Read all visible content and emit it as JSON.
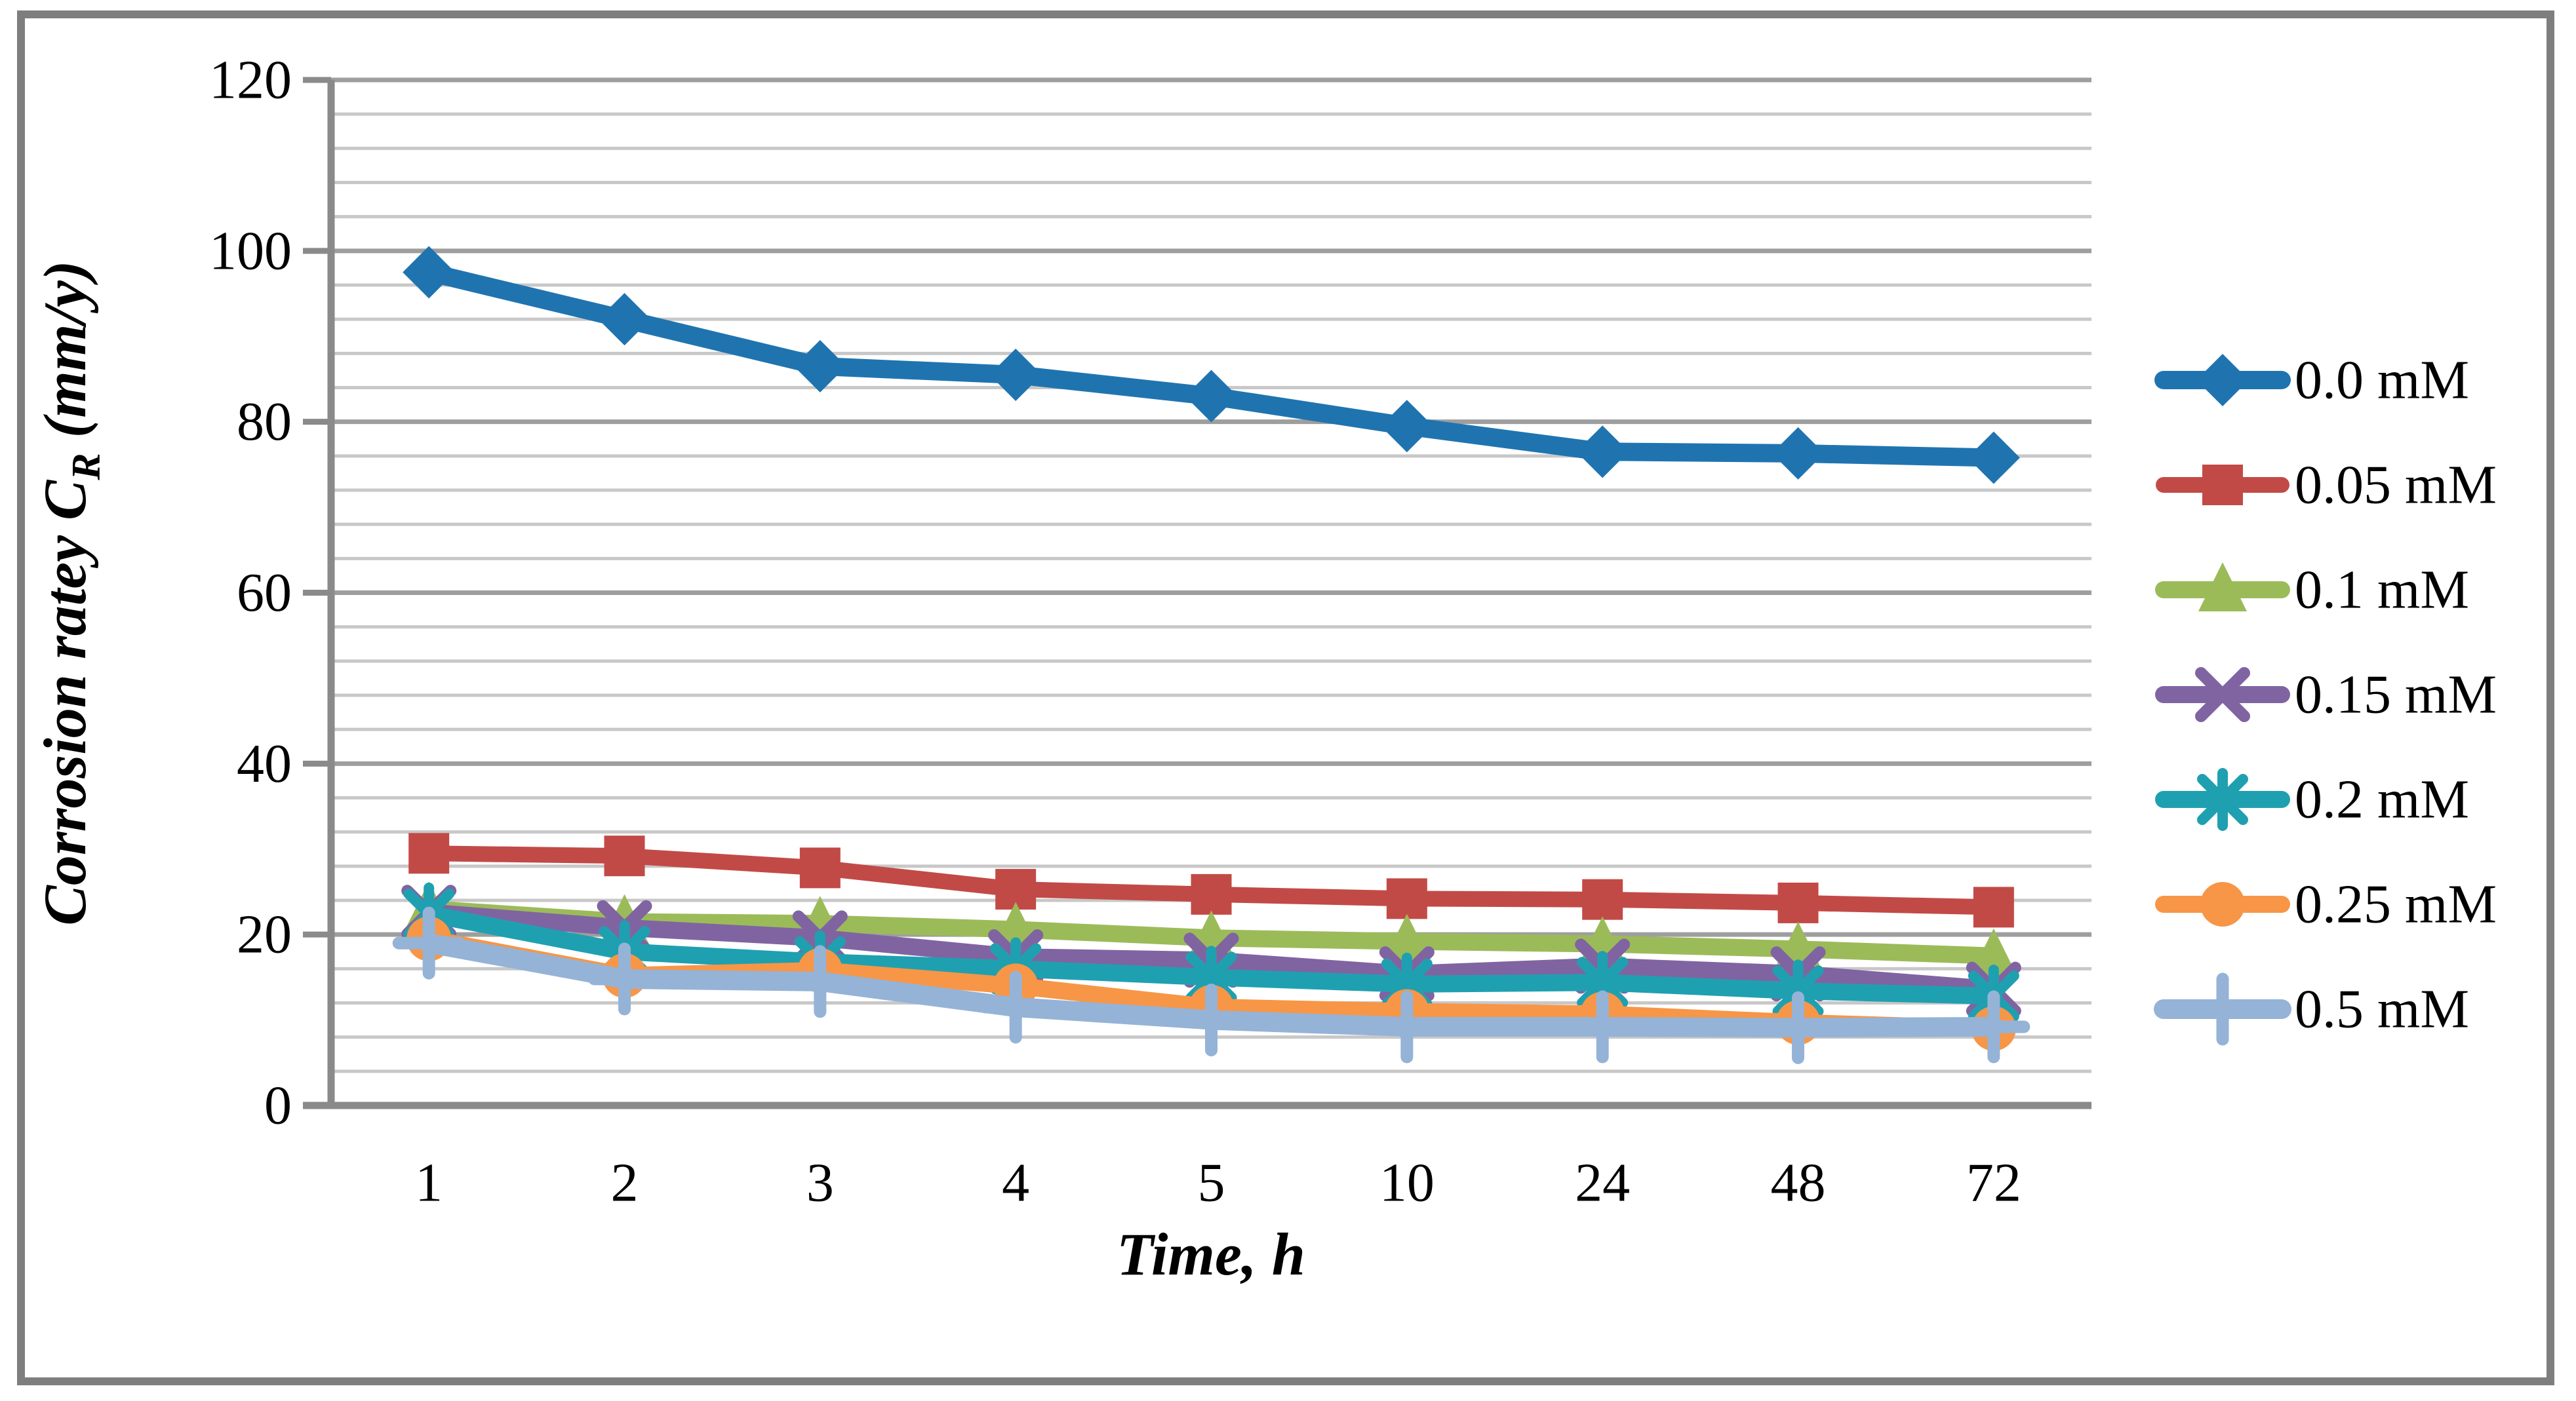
{
  "chart_data": {
    "type": "line",
    "title": "",
    "xlabel": "Time, h",
    "ylabel": "Corrosion ratey CR (mm/y)",
    "ylabel_parts": {
      "prefix": "Corrosion ratey ",
      "symbol": "C",
      "subscript": "R",
      "suffix": " (mm/y)"
    },
    "categories": [
      "1",
      "2",
      "3",
      "4",
      "5",
      "10",
      "24",
      "48",
      "72"
    ],
    "ylim": [
      0,
      120
    ],
    "y_major_ticks": [
      "0",
      "20",
      "40",
      "60",
      "80",
      "100",
      "120"
    ],
    "y_major_unit": 20,
    "y_minor_unit": 4,
    "grid": "horizontal-major-and-minor",
    "legend_position": "right",
    "colors": {
      "axis_gray": "#8a8a8a",
      "major_grid": "#9e9e9e",
      "minor_grid": "#c8c8c8",
      "frame": "#7e7e7e",
      "text": "#000000"
    },
    "series": [
      {
        "name": "0.0 mM",
        "color": "#1f74b0",
        "marker": "diamond",
        "values": [
          97.5,
          92.0,
          86.5,
          85.5,
          83.0,
          79.5,
          76.5,
          76.3,
          75.8
        ]
      },
      {
        "name": "0.05 mM",
        "color": "#c24a46",
        "marker": "square",
        "values": [
          29.5,
          29.2,
          27.8,
          25.3,
          24.7,
          24.2,
          24.1,
          23.7,
          23.2
        ]
      },
      {
        "name": "0.1 mM",
        "color": "#9bbb59",
        "marker": "triangle",
        "values": [
          23.0,
          21.5,
          21.3,
          20.6,
          19.6,
          19.2,
          18.9,
          18.3,
          17.5
        ]
      },
      {
        "name": "0.15 mM",
        "color": "#8064a2",
        "marker": "x",
        "values": [
          22.6,
          20.8,
          19.6,
          17.4,
          17.0,
          15.4,
          16.3,
          15.4,
          13.6
        ]
      },
      {
        "name": "0.2 mM",
        "color": "#1fa0b0",
        "marker": "asterisk",
        "values": [
          22.4,
          18.0,
          16.8,
          16.0,
          15.0,
          14.2,
          14.4,
          13.4,
          12.8
        ]
      },
      {
        "name": "0.25 mM",
        "color": "#f79646",
        "marker": "circle",
        "values": [
          19.5,
          15.2,
          15.8,
          14.0,
          11.5,
          11.0,
          10.7,
          9.7,
          9.0
        ]
      },
      {
        "name": "0.5 mM",
        "color": "#95b3d7",
        "marker": "plus",
        "values": [
          19.0,
          14.8,
          14.5,
          11.5,
          10.0,
          9.2,
          9.2,
          9.1,
          9.2
        ]
      }
    ]
  }
}
